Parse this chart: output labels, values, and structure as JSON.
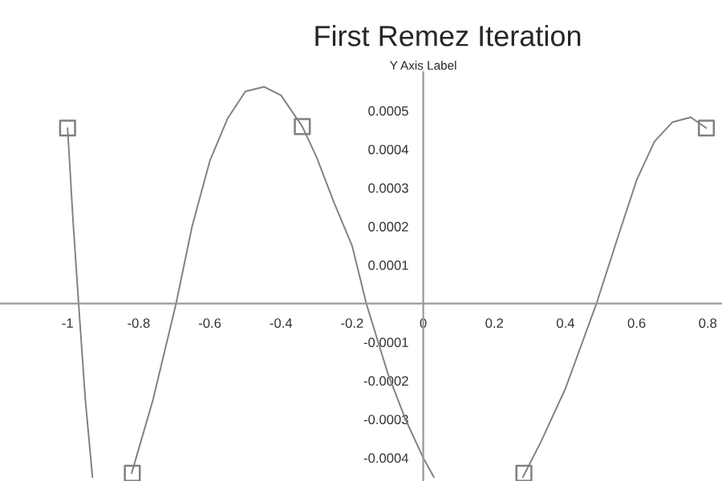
{
  "chart_data": {
    "type": "line",
    "title": "First Remez Iteration",
    "ylabel": "Y Axis Label",
    "xlim": [
      -1.19,
      0.84
    ],
    "ylim": [
      -0.00046,
      0.0006
    ],
    "xticks": [
      -1,
      -0.8,
      -0.6,
      -0.4,
      -0.2,
      0,
      0.2,
      0.4,
      0.6,
      0.8
    ],
    "yticks": [
      -0.0004,
      -0.0003,
      -0.0002,
      -0.0001,
      0.0001,
      0.0002,
      0.0003,
      0.0004,
      0.0005
    ],
    "grid": false,
    "legend": false,
    "series": [
      {
        "color": "#808080",
        "marker": "none",
        "line_style": "solid",
        "x": [
          -1,
          -0.985,
          -0.969,
          -0.95,
          -0.93,
          -0.87,
          -0.82,
          -0.76,
          -0.695,
          -0.65,
          -0.6,
          -0.55,
          -0.5,
          -0.447,
          -0.4,
          -0.34,
          -0.3,
          -0.25,
          -0.2,
          -0.16,
          -0.1,
          -0.05,
          0,
          0.03,
          0.15,
          0.28,
          0.33,
          0.4,
          0.487,
          0.55,
          0.6,
          0.65,
          0.7,
          0.752,
          0.796
        ],
        "values": [
          0.000455,
          0.00022,
          0,
          -0.00025,
          -0.00045,
          null,
          -0.00044,
          -0.00025,
          0,
          0.0002,
          0.00037,
          0.00048,
          0.00055,
          0.000562,
          0.00054,
          0.000459,
          0.00038,
          0.00026,
          0.00015,
          0,
          -0.00018,
          -0.0003,
          -0.0004,
          -0.00045,
          null,
          -0.00045,
          -0.00036,
          -0.00022,
          0,
          0.00018,
          0.00032,
          0.00042,
          0.00047,
          0.000483,
          0.000455
        ]
      },
      {
        "type": "scatter",
        "color": "#808080",
        "marker": "square",
        "x": [
          -1,
          -0.818,
          -0.34,
          0.283,
          0.796
        ],
        "values": [
          0.000455,
          -0.00044,
          0.000459,
          -0.00044,
          0.000455
        ]
      }
    ]
  }
}
